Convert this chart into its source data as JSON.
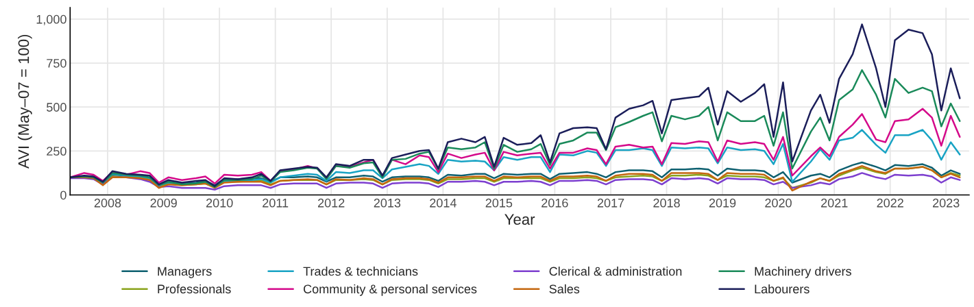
{
  "chart_data": {
    "type": "line",
    "xlabel": "Year",
    "ylabel": "AVI (May–07 = 100)",
    "x": [
      "2007-05",
      "2007-08",
      "2007-10",
      "2007-12",
      "2008-02",
      "2008-05",
      "2008-08",
      "2008-10",
      "2008-12",
      "2009-02",
      "2009-05",
      "2009-08",
      "2009-10",
      "2009-12",
      "2010-02",
      "2010-05",
      "2010-08",
      "2010-10",
      "2010-12",
      "2011-02",
      "2011-05",
      "2011-08",
      "2011-10",
      "2011-12",
      "2012-02",
      "2012-05",
      "2012-08",
      "2012-10",
      "2012-12",
      "2013-02",
      "2013-05",
      "2013-08",
      "2013-10",
      "2013-12",
      "2014-02",
      "2014-05",
      "2014-08",
      "2014-10",
      "2014-12",
      "2015-02",
      "2015-05",
      "2015-08",
      "2015-10",
      "2015-12",
      "2016-02",
      "2016-05",
      "2016-08",
      "2016-10",
      "2016-12",
      "2017-02",
      "2017-05",
      "2017-08",
      "2017-10",
      "2017-12",
      "2018-02",
      "2018-05",
      "2018-08",
      "2018-10",
      "2018-12",
      "2019-02",
      "2019-05",
      "2019-08",
      "2019-10",
      "2019-12",
      "2020-02",
      "2020-04",
      "2020-08",
      "2020-10",
      "2020-12",
      "2021-02",
      "2021-05",
      "2021-07",
      "2021-10",
      "2021-12",
      "2022-02",
      "2022-05",
      "2022-08",
      "2022-10",
      "2022-12",
      "2023-02",
      "2023-04"
    ],
    "series": [
      {
        "name": "Managers",
        "color": "#0e6070",
        "values": [
          100,
          105,
          100,
          70,
          115,
          110,
          105,
          95,
          55,
          75,
          65,
          70,
          80,
          55,
          90,
          90,
          95,
          95,
          75,
          100,
          100,
          105,
          100,
          75,
          100,
          100,
          110,
          105,
          75,
          100,
          105,
          105,
          100,
          80,
          115,
          110,
          120,
          120,
          95,
          120,
          115,
          120,
          120,
          90,
          120,
          125,
          130,
          120,
          100,
          130,
          140,
          140,
          135,
          100,
          145,
          145,
          150,
          145,
          110,
          150,
          140,
          140,
          135,
          100,
          130,
          70,
          110,
          120,
          100,
          140,
          170,
          185,
          160,
          140,
          170,
          165,
          175,
          155,
          110,
          140,
          120
        ]
      },
      {
        "name": "Professionals",
        "color": "#8aa31c",
        "values": [
          null,
          null,
          null,
          60,
          105,
          100,
          100,
          90,
          45,
          65,
          55,
          60,
          65,
          45,
          75,
          75,
          80,
          85,
          60,
          80,
          85,
          85,
          85,
          60,
          85,
          85,
          90,
          85,
          60,
          85,
          90,
          90,
          85,
          65,
          90,
          90,
          95,
          95,
          75,
          95,
          95,
          95,
          95,
          75,
          95,
          95,
          100,
          95,
          80,
          100,
          105,
          110,
          105,
          80,
          110,
          110,
          115,
          110,
          85,
          110,
          105,
          105,
          100,
          80,
          95,
          40,
          70,
          95,
          80,
          110,
          140,
          155,
          130,
          120,
          150,
          150,
          160,
          140,
          100,
          125,
          110
        ]
      },
      {
        "name": "Trades & technicians",
        "color": "#18a3c4",
        "values": [
          null,
          null,
          null,
          70,
          120,
          110,
          105,
          95,
          55,
          70,
          60,
          65,
          70,
          45,
          80,
          80,
          85,
          90,
          70,
          100,
          110,
          120,
          115,
          80,
          130,
          125,
          140,
          140,
          95,
          145,
          160,
          175,
          165,
          120,
          200,
          190,
          195,
          190,
          140,
          215,
          200,
          215,
          215,
          130,
          230,
          225,
          250,
          240,
          165,
          255,
          255,
          265,
          255,
          165,
          270,
          265,
          270,
          265,
          180,
          270,
          255,
          260,
          250,
          175,
          290,
          75,
          190,
          260,
          200,
          310,
          325,
          370,
          285,
          240,
          340,
          340,
          370,
          310,
          200,
          300,
          230
        ]
      },
      {
        "name": "Community & personal services",
        "color": "#d4098a",
        "values": [
          100,
          125,
          115,
          80,
          130,
          115,
          135,
          125,
          70,
          100,
          85,
          95,
          105,
          65,
          115,
          110,
          115,
          130,
          80,
          135,
          145,
          165,
          150,
          95,
          165,
          160,
          185,
          200,
          105,
          200,
          175,
          225,
          215,
          130,
          235,
          210,
          230,
          240,
          140,
          245,
          225,
          235,
          240,
          150,
          240,
          240,
          265,
          255,
          175,
          275,
          285,
          270,
          275,
          175,
          295,
          290,
          305,
          300,
          190,
          310,
          290,
          300,
          290,
          200,
          330,
          110,
          220,
          270,
          220,
          330,
          400,
          460,
          315,
          300,
          420,
          430,
          490,
          440,
          280,
          450,
          330
        ]
      },
      {
        "name": "Clerical & administration",
        "color": "#7d3fcf",
        "values": [
          95,
          95,
          90,
          60,
          100,
          100,
          90,
          75,
          45,
          50,
          40,
          40,
          40,
          30,
          50,
          55,
          55,
          55,
          40,
          60,
          65,
          65,
          65,
          40,
          65,
          70,
          70,
          65,
          40,
          65,
          70,
          70,
          65,
          45,
          75,
          75,
          80,
          75,
          55,
          75,
          75,
          80,
          75,
          55,
          80,
          80,
          85,
          80,
          60,
          85,
          90,
          90,
          85,
          60,
          95,
          90,
          95,
          90,
          65,
          95,
          90,
          90,
          85,
          60,
          75,
          40,
          55,
          70,
          60,
          90,
          105,
          125,
          100,
          90,
          115,
          110,
          115,
          105,
          70,
          100,
          85
        ]
      },
      {
        "name": "Sales",
        "color": "#c4670f",
        "values": [
          100,
          100,
          95,
          55,
          100,
          100,
          95,
          85,
          40,
          60,
          55,
          60,
          65,
          40,
          70,
          75,
          75,
          75,
          55,
          80,
          85,
          90,
          85,
          60,
          90,
          85,
          95,
          90,
          60,
          90,
          95,
          95,
          90,
          70,
          100,
          100,
          105,
          105,
          80,
          105,
          100,
          105,
          105,
          80,
          105,
          105,
          110,
          105,
          80,
          110,
          120,
          120,
          115,
          80,
          125,
          125,
          125,
          120,
          85,
          125,
          120,
          120,
          115,
          80,
          100,
          25,
          75,
          95,
          80,
          120,
          145,
          165,
          135,
          125,
          150,
          150,
          160,
          140,
          100,
          120,
          100
        ]
      },
      {
        "name": "Machinery drivers",
        "color": "#1a8a5a",
        "values": [
          100,
          105,
          100,
          70,
          125,
          115,
          110,
          100,
          55,
          75,
          60,
          65,
          75,
          45,
          85,
          85,
          90,
          110,
          75,
          130,
          140,
          155,
          150,
          90,
          165,
          155,
          180,
          185,
          100,
          200,
          205,
          235,
          245,
          145,
          270,
          260,
          270,
          300,
          150,
          285,
          245,
          260,
          290,
          170,
          290,
          310,
          355,
          355,
          255,
          385,
          415,
          450,
          470,
          305,
          450,
          430,
          450,
          500,
          310,
          470,
          420,
          420,
          450,
          280,
          470,
          150,
          360,
          440,
          310,
          540,
          600,
          710,
          570,
          440,
          660,
          580,
          610,
          590,
          390,
          520,
          420
        ]
      },
      {
        "name": "Labourers",
        "color": "#1b1e5a",
        "values": [
          100,
          110,
          105,
          75,
          135,
          120,
          115,
          110,
          60,
          85,
          70,
          80,
          85,
          50,
          95,
          90,
          100,
          120,
          80,
          140,
          150,
          160,
          155,
          100,
          175,
          165,
          200,
          200,
          110,
          210,
          230,
          250,
          255,
          150,
          300,
          320,
          300,
          330,
          160,
          325,
          285,
          295,
          340,
          185,
          350,
          380,
          385,
          380,
          260,
          440,
          490,
          510,
          535,
          350,
          540,
          550,
          560,
          610,
          400,
          590,
          530,
          580,
          630,
          330,
          640,
          190,
          480,
          570,
          410,
          660,
          800,
          970,
          720,
          500,
          880,
          940,
          920,
          800,
          480,
          720,
          550
        ]
      }
    ],
    "xlim": [
      "2007-05",
      "2023-06"
    ],
    "xticks": [
      "2008",
      "2009",
      "2010",
      "2011",
      "2012",
      "2013",
      "2014",
      "2015",
      "2016",
      "2017",
      "2018",
      "2019",
      "2020",
      "2021",
      "2022",
      "2023"
    ],
    "ylim": [
      0,
      1065
    ],
    "yticks": [
      0,
      250,
      500,
      750,
      {
        "value": 1000,
        "label": "1,000"
      }
    ],
    "grid": true,
    "legend": "bottom",
    "marker": "none",
    "line_style": "solid"
  }
}
